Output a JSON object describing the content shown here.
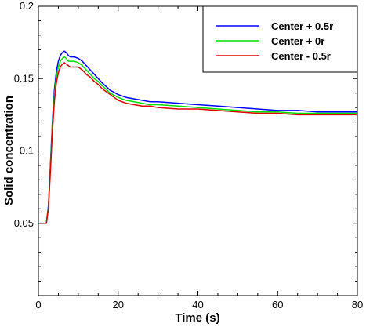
{
  "chart_data": {
    "type": "line",
    "xlabel": "Time (s)",
    "ylabel": "Solid concentration",
    "xlim": [
      0,
      80
    ],
    "ylim": [
      0,
      0.2
    ],
    "x_ticks": [
      0,
      20,
      40,
      60,
      80
    ],
    "x_tick_labels": [
      "0",
      "20",
      "40",
      "60",
      "80"
    ],
    "y_ticks": [
      0.05,
      0.1,
      0.15,
      0.2
    ],
    "y_tick_labels": [
      "0.05",
      "0.1",
      "0.15",
      "0.2"
    ],
    "grid": false,
    "legend_position": "top-right",
    "series": [
      {
        "name": "Center + 0.5r",
        "color": "#0000ff",
        "x": [
          0,
          2,
          2.5,
          3,
          3.5,
          4,
          4.5,
          5,
          5.5,
          6,
          6.5,
          7,
          7.5,
          8,
          9,
          10,
          11,
          12,
          13,
          14,
          15,
          16,
          18,
          20,
          22,
          24,
          26,
          28,
          30,
          35,
          40,
          45,
          50,
          55,
          60,
          65,
          70,
          75,
          80
        ],
        "y": [
          0.05,
          0.05,
          0.062,
          0.09,
          0.12,
          0.142,
          0.155,
          0.162,
          0.166,
          0.168,
          0.169,
          0.168,
          0.166,
          0.165,
          0.165,
          0.164,
          0.162,
          0.159,
          0.156,
          0.153,
          0.15,
          0.147,
          0.142,
          0.139,
          0.137,
          0.136,
          0.135,
          0.134,
          0.134,
          0.133,
          0.132,
          0.131,
          0.13,
          0.129,
          0.128,
          0.128,
          0.127,
          0.127,
          0.127
        ]
      },
      {
        "name": "Center + 0r",
        "color": "#00dd00",
        "x": [
          0,
          2,
          2.5,
          3,
          3.5,
          4,
          4.5,
          5,
          5.5,
          6,
          6.5,
          7,
          7.5,
          8,
          9,
          10,
          11,
          12,
          13,
          14,
          15,
          16,
          18,
          20,
          22,
          24,
          26,
          28,
          30,
          35,
          40,
          45,
          50,
          55,
          60,
          65,
          70,
          75,
          80
        ],
        "y": [
          0.05,
          0.05,
          0.061,
          0.088,
          0.117,
          0.138,
          0.151,
          0.158,
          0.162,
          0.164,
          0.165,
          0.164,
          0.162,
          0.162,
          0.162,
          0.161,
          0.159,
          0.156,
          0.153,
          0.15,
          0.148,
          0.145,
          0.14,
          0.137,
          0.135,
          0.134,
          0.133,
          0.132,
          0.132,
          0.131,
          0.13,
          0.129,
          0.128,
          0.127,
          0.127,
          0.126,
          0.126,
          0.126,
          0.126
        ]
      },
      {
        "name": "Center - 0.5r",
        "color": "#dd0000",
        "x": [
          0,
          2,
          2.5,
          3,
          3.5,
          4,
          4.5,
          5,
          5.5,
          6,
          6.5,
          7,
          7.5,
          8,
          9,
          10,
          11,
          12,
          13,
          14,
          15,
          16,
          18,
          20,
          22,
          24,
          26,
          28,
          30,
          35,
          40,
          45,
          50,
          55,
          60,
          65,
          70,
          75,
          80
        ],
        "y": [
          0.05,
          0.05,
          0.06,
          0.085,
          0.113,
          0.134,
          0.147,
          0.154,
          0.158,
          0.16,
          0.161,
          0.16,
          0.159,
          0.158,
          0.158,
          0.158,
          0.156,
          0.153,
          0.151,
          0.148,
          0.146,
          0.143,
          0.139,
          0.135,
          0.133,
          0.132,
          0.131,
          0.131,
          0.13,
          0.129,
          0.129,
          0.128,
          0.127,
          0.126,
          0.126,
          0.125,
          0.125,
          0.125,
          0.125
        ]
      }
    ]
  }
}
